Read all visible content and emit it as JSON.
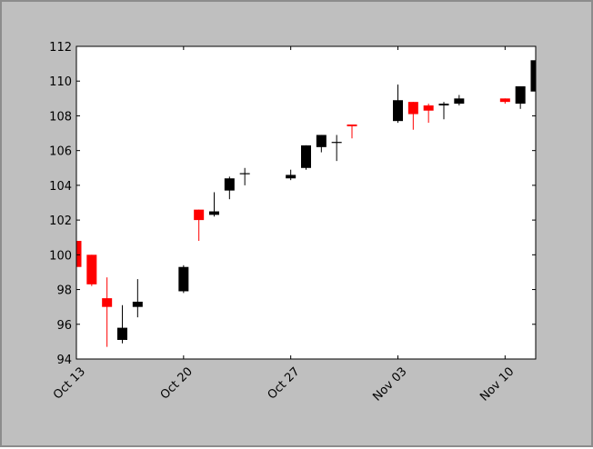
{
  "chart_data": {
    "type": "candlestick",
    "title": "",
    "xlabel": "",
    "ylabel": "",
    "ylim": [
      94,
      112
    ],
    "yticks": [
      94,
      96,
      98,
      100,
      102,
      104,
      106,
      108,
      110,
      112
    ],
    "x_range_days": [
      0,
      30
    ],
    "xticks": [
      {
        "day": 0,
        "label": "Oct 13"
      },
      {
        "day": 7,
        "label": "Oct 20"
      },
      {
        "day": 14,
        "label": "Oct 27"
      },
      {
        "day": 21,
        "label": "Nov 03"
      },
      {
        "day": 28,
        "label": "Nov 10"
      }
    ],
    "grid": false,
    "colors": {
      "up": "#000000",
      "down": "#ff0000",
      "figure_bg": "#bfbfbf",
      "axes_bg": "#ffffff"
    },
    "candles": [
      {
        "date": "Oct 13",
        "day": 0,
        "open": 100.8,
        "high": 101.0,
        "low": 99.2,
        "close": 99.3
      },
      {
        "date": "Oct 14",
        "day": 1,
        "open": 100.0,
        "high": 100.0,
        "low": 98.2,
        "close": 98.3
      },
      {
        "date": "Oct 15",
        "day": 2,
        "open": 97.5,
        "high": 98.7,
        "low": 94.7,
        "close": 97.0
      },
      {
        "date": "Oct 16",
        "day": 3,
        "open": 95.1,
        "high": 97.1,
        "low": 94.9,
        "close": 95.8
      },
      {
        "date": "Oct 17",
        "day": 4,
        "open": 97.0,
        "high": 98.6,
        "low": 96.4,
        "close": 97.3
      },
      {
        "date": "Oct 20",
        "day": 7,
        "open": 97.9,
        "high": 99.4,
        "low": 97.8,
        "close": 99.3
      },
      {
        "date": "Oct 21",
        "day": 8,
        "open": 102.6,
        "high": 102.6,
        "low": 100.8,
        "close": 102.0
      },
      {
        "date": "Oct 22",
        "day": 9,
        "open": 102.3,
        "high": 103.6,
        "low": 102.2,
        "close": 102.5
      },
      {
        "date": "Oct 23",
        "day": 10,
        "open": 103.7,
        "high": 104.5,
        "low": 103.2,
        "close": 104.4
      },
      {
        "date": "Oct 24",
        "day": 11,
        "open": 104.7,
        "high": 105.0,
        "low": 104.0,
        "close": 104.7
      },
      {
        "date": "Oct 27",
        "day": 14,
        "open": 104.4,
        "high": 104.9,
        "low": 104.3,
        "close": 104.6
      },
      {
        "date": "Oct 28",
        "day": 15,
        "open": 105.0,
        "high": 106.3,
        "low": 104.9,
        "close": 106.3
      },
      {
        "date": "Oct 29",
        "day": 16,
        "open": 106.2,
        "high": 106.9,
        "low": 105.9,
        "close": 106.9
      },
      {
        "date": "Oct 30",
        "day": 17,
        "open": 106.5,
        "high": 106.9,
        "low": 105.4,
        "close": 106.5
      },
      {
        "date": "Oct 31",
        "day": 18,
        "open": 107.5,
        "high": 107.5,
        "low": 106.7,
        "close": 107.4
      },
      {
        "date": "Nov 03",
        "day": 21,
        "open": 107.7,
        "high": 109.8,
        "low": 107.6,
        "close": 108.9
      },
      {
        "date": "Nov 04",
        "day": 22,
        "open": 108.8,
        "high": 108.8,
        "low": 107.2,
        "close": 108.1
      },
      {
        "date": "Nov 05",
        "day": 23,
        "open": 108.6,
        "high": 108.7,
        "low": 107.6,
        "close": 108.3
      },
      {
        "date": "Nov 06",
        "day": 24,
        "open": 108.6,
        "high": 108.8,
        "low": 107.8,
        "close": 108.7
      },
      {
        "date": "Nov 07",
        "day": 25,
        "open": 108.7,
        "high": 109.2,
        "low": 108.6,
        "close": 109.0
      },
      {
        "date": "Nov 10",
        "day": 28,
        "open": 109.0,
        "high": 109.0,
        "low": 108.7,
        "close": 108.8
      },
      {
        "date": "Nov 11",
        "day": 29,
        "open": 108.7,
        "high": 109.7,
        "low": 108.4,
        "close": 109.7
      },
      {
        "date": "Nov 12",
        "day": 30,
        "open": 109.4,
        "high": 111.2,
        "low": 109.3,
        "close": 111.2
      }
    ]
  }
}
